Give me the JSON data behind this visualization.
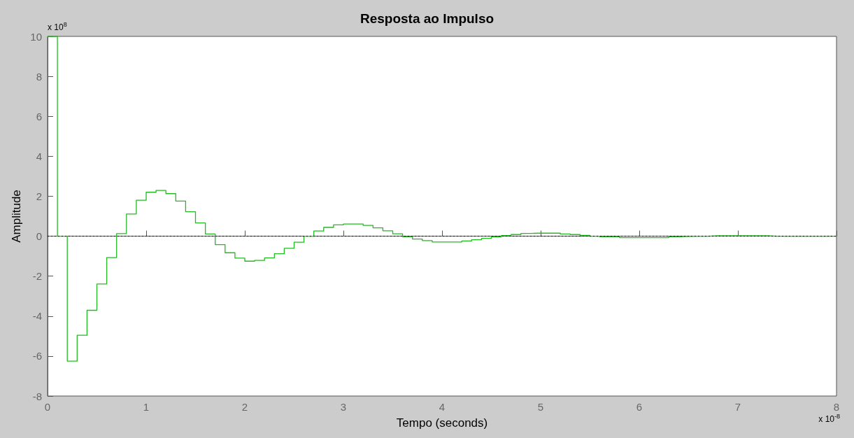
{
  "chart_data": {
    "type": "step",
    "title": "Resposta ao Impulso",
    "xlabel": "Tempo (seconds)",
    "ylabel": "Amplitude",
    "annotations": [
      "x 10$^{8}$",
      "x 10$^{-8}$"
    ],
    "xlim": [
      0,
      8
    ],
    "xticks": [
      0,
      1,
      2,
      3,
      4,
      5,
      6,
      7,
      8
    ],
    "ylim": [
      -8,
      10
    ],
    "yticks": [
      -8,
      -6,
      -4,
      -2,
      0,
      2,
      4,
      6,
      8,
      10
    ],
    "grid": false,
    "ref_lines": [
      {
        "axis": "y",
        "value": 0,
        "color": "#000000",
        "line_style": "dotted"
      }
    ],
    "x": [
      0,
      0.1,
      0.2,
      0.3,
      0.4,
      0.5,
      0.6,
      0.7,
      0.8,
      0.9,
      1.0,
      1.1,
      1.2,
      1.3,
      1.4,
      1.5,
      1.6,
      1.7,
      1.8,
      1.9,
      2.0,
      2.1,
      2.2,
      2.3,
      2.4,
      2.5,
      2.6,
      2.7,
      2.8,
      2.9,
      3.0,
      3.1,
      3.2,
      3.3,
      3.4,
      3.5,
      3.6,
      3.7,
      3.8,
      3.9,
      4.0,
      4.1,
      4.2,
      4.3,
      4.4,
      4.5,
      4.6,
      4.7,
      4.8,
      4.9,
      5.0,
      5.1,
      5.2,
      5.3,
      5.4,
      5.5,
      5.6,
      5.7,
      5.8,
      5.9,
      6.0,
      6.1,
      6.2,
      6.3,
      6.4,
      6.5,
      6.6,
      6.7,
      6.8,
      6.9,
      7.0,
      7.1,
      7.2,
      7.3,
      7.4,
      7.5,
      7.6,
      7.7,
      7.8,
      7.9,
      8.0
    ],
    "series": [
      {
        "color": "#22bb22",
        "values": [
          10,
          0,
          -6.25,
          -4.96,
          -3.71,
          -2.39,
          -1.07,
          0.13,
          1.11,
          1.8,
          2.2,
          2.29,
          2.13,
          1.76,
          1.22,
          0.66,
          0.11,
          -0.42,
          -0.83,
          -1.1,
          -1.25,
          -1.21,
          -1.09,
          -0.88,
          -0.61,
          -0.3,
          0.0,
          0.26,
          0.44,
          0.57,
          0.61,
          0.61,
          0.54,
          0.42,
          0.27,
          0.12,
          -0.03,
          -0.14,
          -0.22,
          -0.29,
          -0.29,
          -0.29,
          -0.24,
          -0.18,
          -0.11,
          -0.04,
          0.03,
          0.08,
          0.14,
          0.15,
          0.15,
          0.15,
          0.11,
          0.08,
          0.04,
          0,
          -0.03,
          -0.03,
          -0.07,
          -0.07,
          -0.07,
          -0.07,
          -0.07,
          -0.03,
          -0.01,
          0,
          0,
          0.02,
          0.02,
          0.02,
          0.02,
          0.02,
          0.02,
          0,
          0,
          0,
          0,
          0,
          0,
          0,
          0
        ]
      }
    ]
  }
}
